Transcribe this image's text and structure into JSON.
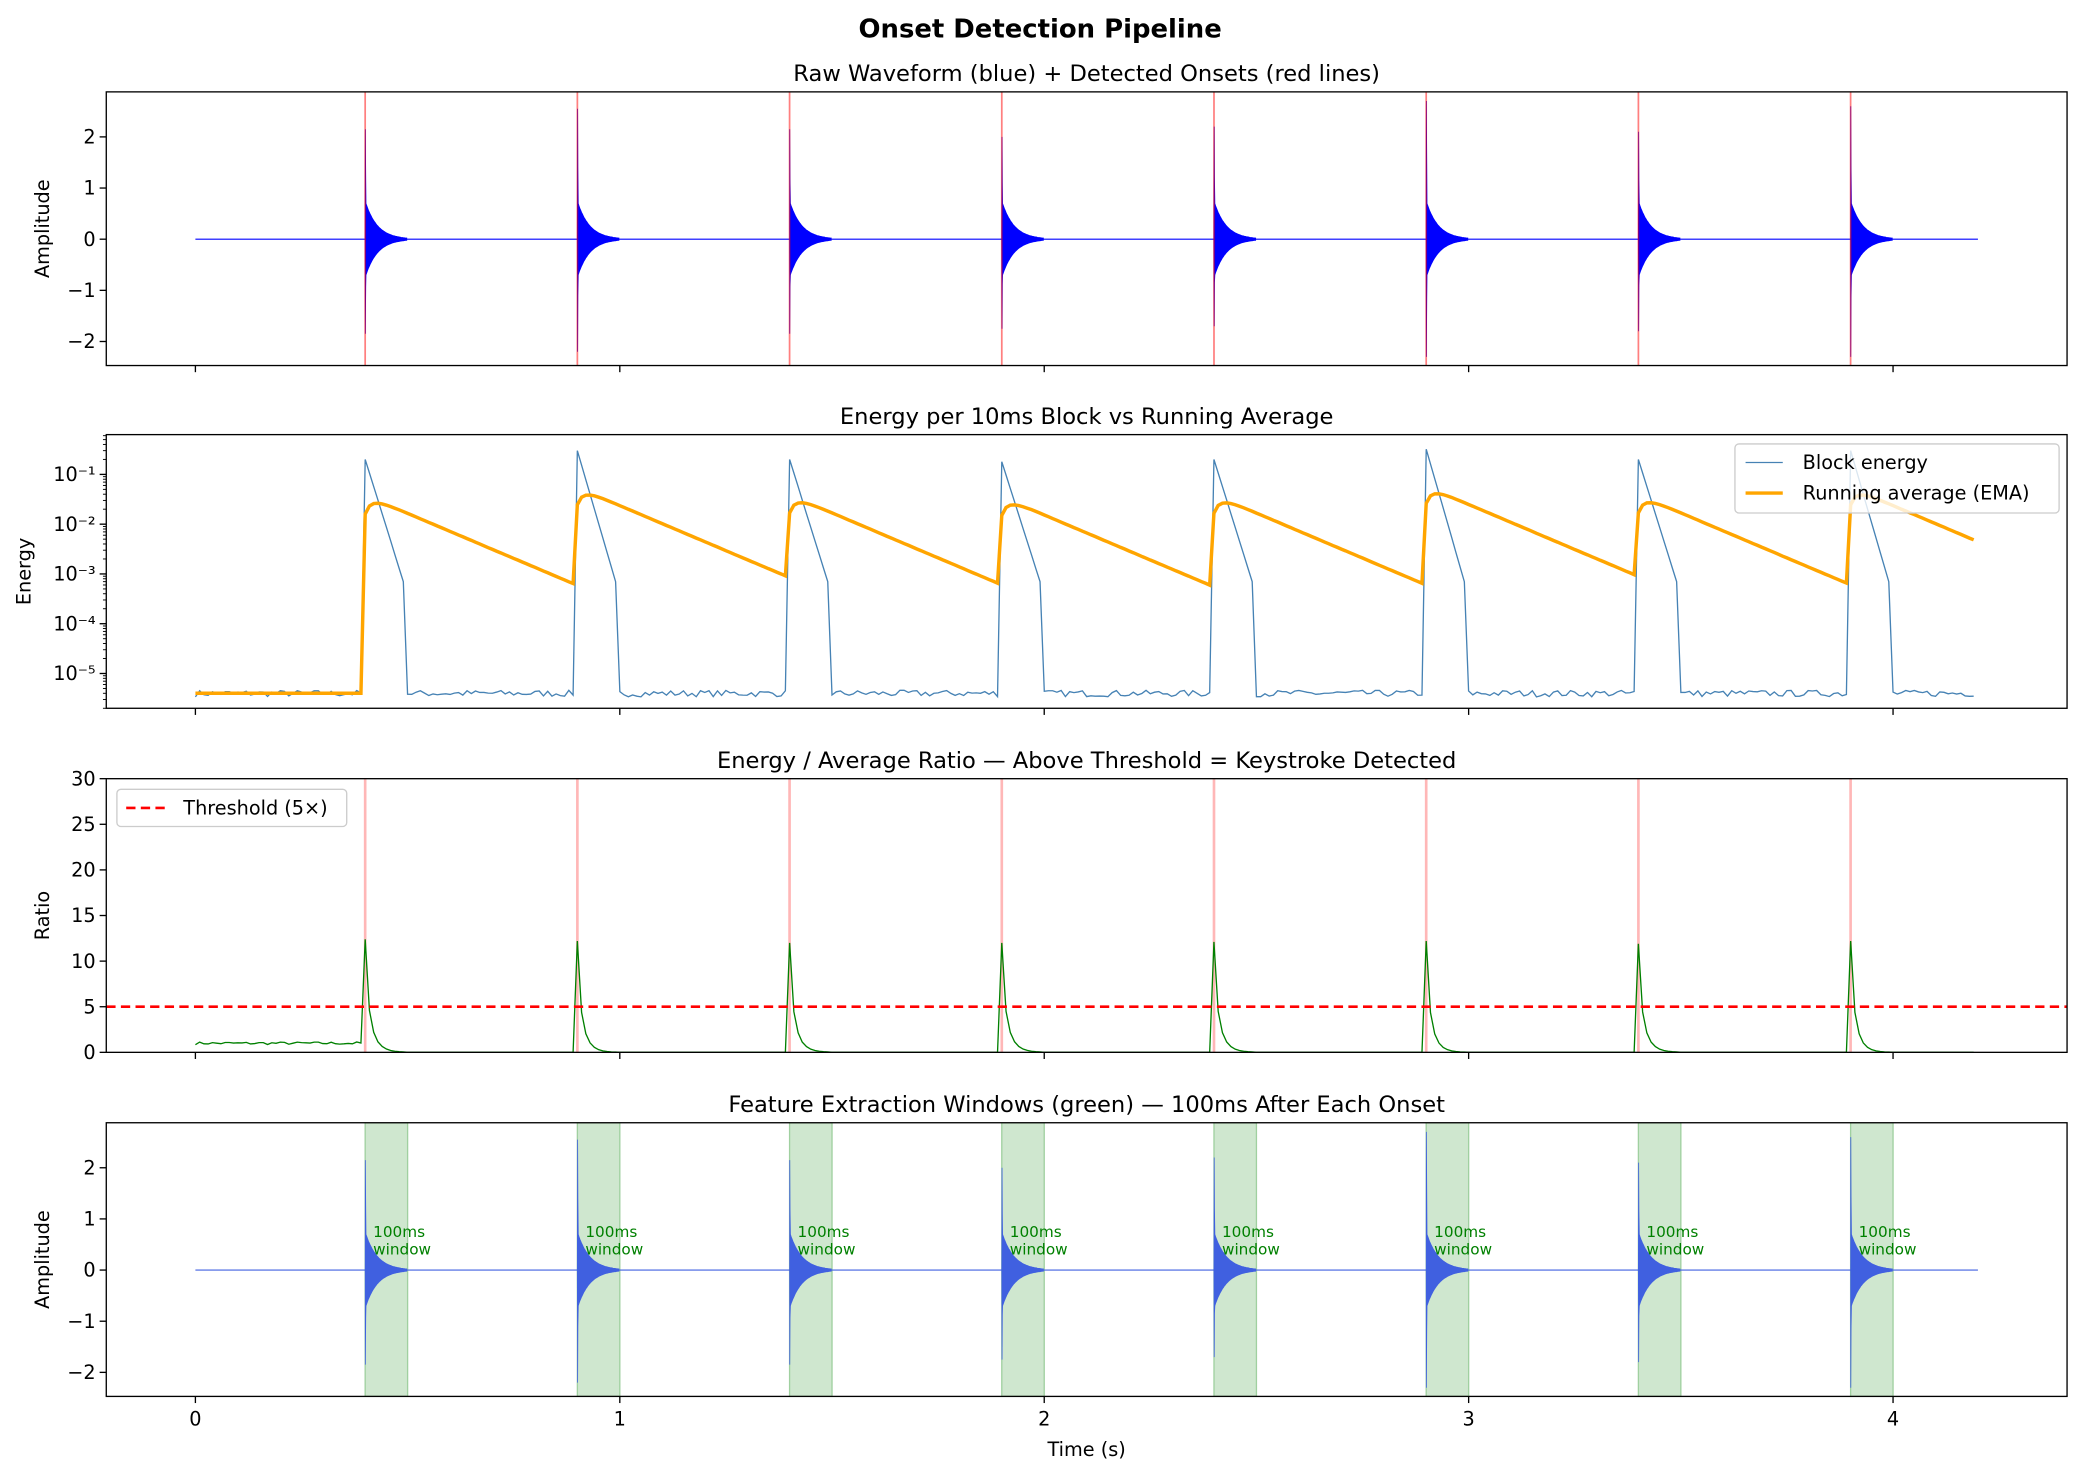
{
  "suptitle": "Onset Detection Pipeline",
  "chart_data": [
    {
      "type": "line",
      "title": "Raw Waveform (blue) + Detected Onsets (red lines)",
      "xlabel": "",
      "ylabel": "Amplitude",
      "xlim": [
        -0.21,
        4.41
      ],
      "ylim": [
        -2.47,
        2.88
      ],
      "yticks": [
        -2,
        -1,
        0,
        1,
        2
      ],
      "ytick_labels": [
        "−2",
        "−1",
        "0",
        "1",
        "2"
      ],
      "signal_duration_s": 4.2,
      "onsets_s": [
        0.4,
        0.9,
        1.4,
        1.9,
        2.4,
        2.9,
        3.4,
        3.9
      ],
      "peak_positive": [
        2.15,
        2.55,
        2.15,
        2.0,
        2.2,
        2.7,
        2.1,
        2.6
      ],
      "peak_negative": [
        -1.85,
        -2.2,
        -1.85,
        -1.75,
        -1.7,
        -2.3,
        -1.8,
        -2.3
      ],
      "colors": {
        "waveform": "#0000ff",
        "onset_line": "#ff0000"
      }
    },
    {
      "type": "line",
      "title": "Energy per 10ms Block vs Running Average",
      "xlabel": "",
      "ylabel": "Energy",
      "yscale": "log",
      "xlim": [
        -0.21,
        4.41
      ],
      "ylim": [
        2e-06,
        0.63
      ],
      "yticks": [
        1e-05,
        0.0001,
        0.001,
        0.01,
        0.1
      ],
      "ytick_labels": [
        "10⁻⁵",
        "10⁻⁴",
        "10⁻³",
        "10⁻²",
        "10⁻¹"
      ],
      "baseline_energy": 4e-06,
      "block_energy_peaks": [
        0.2,
        0.3,
        0.2,
        0.18,
        0.2,
        0.32,
        0.2,
        0.3
      ],
      "legend": {
        "position": "upper right",
        "entries": [
          "Block energy",
          "Running average (EMA)"
        ]
      },
      "series": [
        {
          "name": "Block energy",
          "color": "#4682b4"
        },
        {
          "name": "Running average (EMA)",
          "color": "#ffa500"
        }
      ]
    },
    {
      "type": "line",
      "title": "Energy / Average Ratio — Above Threshold = Keystroke Detected",
      "xlabel": "",
      "ylabel": "Ratio",
      "xlim": [
        -0.21,
        4.41
      ],
      "ylim": [
        0,
        30
      ],
      "yticks": [
        0,
        5,
        10,
        15,
        20,
        25,
        30
      ],
      "ytick_labels": [
        "0",
        "5",
        "10",
        "15",
        "20",
        "25",
        "30"
      ],
      "threshold": 5,
      "ratio_peaks": [
        12.4,
        12.2,
        12.0,
        12.0,
        12.1,
        12.2,
        11.9,
        12.2
      ],
      "legend": {
        "position": "upper left",
        "entries": [
          "Threshold (5×)"
        ]
      },
      "colors": {
        "ratio": "#008000",
        "threshold": "#ff0000",
        "onset_line": "#ff9999"
      }
    },
    {
      "type": "line",
      "title": "Feature Extraction Windows (green) — 100ms After Each Onset",
      "xlabel": "Time (s)",
      "ylabel": "Amplitude",
      "xlim": [
        -0.21,
        4.41
      ],
      "ylim": [
        -2.47,
        2.88
      ],
      "yticks": [
        -2,
        -1,
        0,
        1,
        2
      ],
      "ytick_labels": [
        "−2",
        "−1",
        "0",
        "1",
        "2"
      ],
      "xticks": [
        0,
        1,
        2,
        3,
        4
      ],
      "xtick_labels": [
        "0",
        "1",
        "2",
        "3",
        "4"
      ],
      "window_s": 0.1,
      "annotation_lines": [
        "100ms",
        "window"
      ],
      "colors": {
        "waveform": "#4060e0",
        "window": "#a0d0a0"
      }
    }
  ]
}
